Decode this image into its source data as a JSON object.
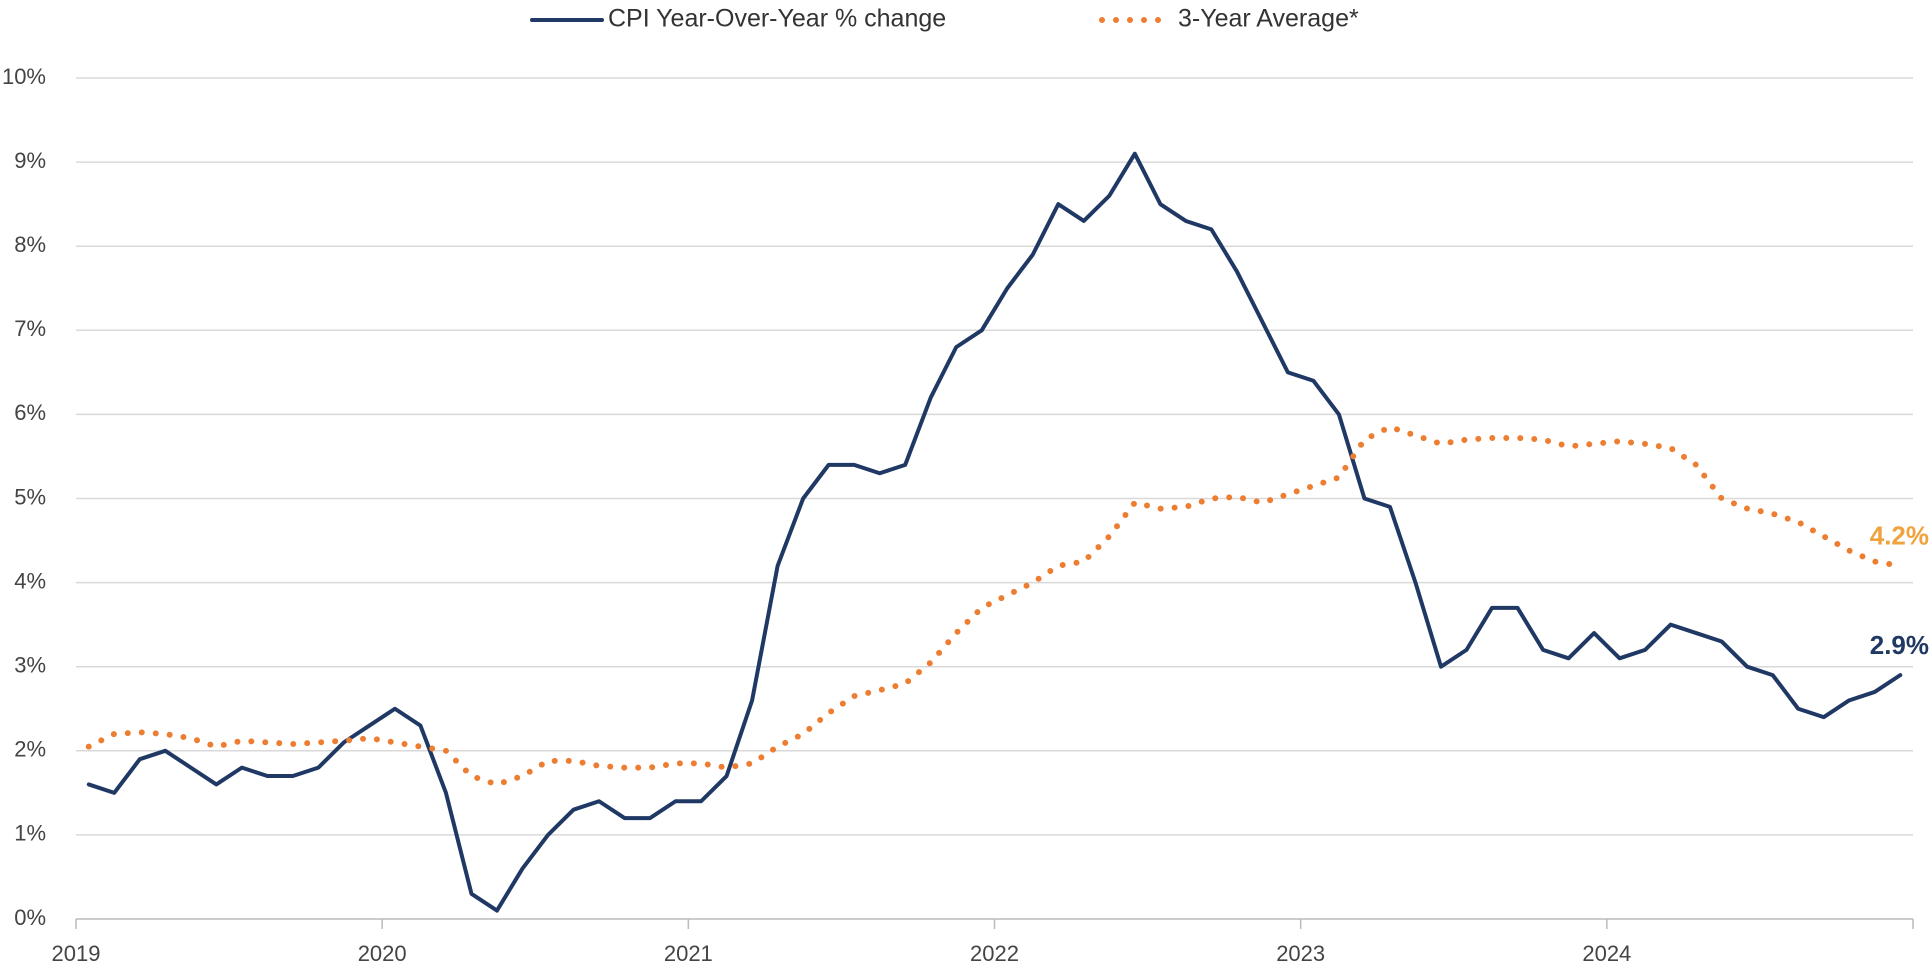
{
  "chart_data": {
    "type": "line",
    "x": [
      2019.0417,
      2019.125,
      2019.2083,
      2019.2917,
      2019.375,
      2019.4583,
      2019.5417,
      2019.625,
      2019.7083,
      2019.7917,
      2019.875,
      2019.9583,
      2020.0417,
      2020.125,
      2020.2083,
      2020.2917,
      2020.375,
      2020.4583,
      2020.5417,
      2020.625,
      2020.7083,
      2020.7917,
      2020.875,
      2020.9583,
      2021.0417,
      2021.125,
      2021.2083,
      2021.2917,
      2021.375,
      2021.4583,
      2021.5417,
      2021.625,
      2021.7083,
      2021.7917,
      2021.875,
      2021.9583,
      2022.0417,
      2022.125,
      2022.2083,
      2022.2917,
      2022.375,
      2022.4583,
      2022.5417,
      2022.625,
      2022.7083,
      2022.7917,
      2022.875,
      2022.9583,
      2023.0417,
      2023.125,
      2023.2083,
      2023.2917,
      2023.375,
      2023.4583,
      2023.5417,
      2023.625,
      2023.7083,
      2023.7917,
      2023.875,
      2023.9583,
      2024.0417,
      2024.125,
      2024.2083,
      2024.2917,
      2024.375,
      2024.4583,
      2024.5417,
      2024.625,
      2024.7083,
      2024.7917,
      2024.875,
      2024.9583
    ],
    "series": [
      {
        "name": "CPI Year-Over-Year % change",
        "color": "#203864",
        "style": "solid",
        "values": [
          1.6,
          1.5,
          1.9,
          2.0,
          1.8,
          1.6,
          1.8,
          1.7,
          1.7,
          1.8,
          2.1,
          2.3,
          2.5,
          2.3,
          1.5,
          0.3,
          0.1,
          0.6,
          1.0,
          1.3,
          1.4,
          1.2,
          1.2,
          1.4,
          1.4,
          1.7,
          2.6,
          4.2,
          5.0,
          5.4,
          5.4,
          5.3,
          5.4,
          6.2,
          6.8,
          7.0,
          7.5,
          7.9,
          8.5,
          8.3,
          8.6,
          9.1,
          8.5,
          8.3,
          8.2,
          7.7,
          7.1,
          6.5,
          6.4,
          6.0,
          5.0,
          4.9,
          4.0,
          3.0,
          3.2,
          3.7,
          3.7,
          3.2,
          3.1,
          3.4,
          3.1,
          3.2,
          3.5,
          3.4,
          3.3,
          3.0,
          2.9,
          2.5,
          2.4,
          2.6,
          2.7,
          2.9
        ],
        "value_labels": [
          null,
          null,
          null,
          null,
          null,
          null,
          null,
          null,
          null,
          null,
          null,
          null,
          null,
          null,
          null,
          null,
          null,
          null,
          null,
          null,
          null,
          null,
          null,
          null,
          null,
          null,
          null,
          null,
          null,
          null,
          null,
          null,
          null,
          null,
          null,
          null,
          null,
          null,
          null,
          null,
          null,
          null,
          null,
          null,
          null,
          null,
          null,
          null,
          null,
          null,
          null,
          null,
          null,
          null,
          null,
          null,
          null,
          null,
          null,
          null,
          null,
          null,
          null,
          null,
          null,
          null,
          null,
          null,
          null,
          null,
          null,
          "2.9%"
        ],
        "label_color": "#203864"
      },
      {
        "name": "3-Year Average*",
        "color": "#ed7d31",
        "style": "dotted",
        "values": [
          2.05,
          2.2,
          2.22,
          2.2,
          2.15,
          2.05,
          2.12,
          2.1,
          2.08,
          2.1,
          2.12,
          2.15,
          2.1,
          2.05,
          2.0,
          1.7,
          1.6,
          1.7,
          1.88,
          1.88,
          1.82,
          1.8,
          1.8,
          1.85,
          1.85,
          1.8,
          1.85,
          2.05,
          2.2,
          2.45,
          2.65,
          2.72,
          2.8,
          3.05,
          3.4,
          3.7,
          3.85,
          4.0,
          4.2,
          4.25,
          4.55,
          4.95,
          4.88,
          4.9,
          5.0,
          5.02,
          4.95,
          5.05,
          5.15,
          5.25,
          5.7,
          5.85,
          5.75,
          5.65,
          5.7,
          5.72,
          5.72,
          5.7,
          5.62,
          5.65,
          5.68,
          5.65,
          5.6,
          5.4,
          5.0,
          4.88,
          4.82,
          4.72,
          4.55,
          4.38,
          4.25,
          4.2
        ],
        "value_labels": [
          null,
          null,
          null,
          null,
          null,
          null,
          null,
          null,
          null,
          null,
          null,
          null,
          null,
          null,
          null,
          null,
          null,
          null,
          null,
          null,
          null,
          null,
          null,
          null,
          null,
          null,
          null,
          null,
          null,
          null,
          null,
          null,
          null,
          null,
          null,
          null,
          null,
          null,
          null,
          null,
          null,
          null,
          null,
          null,
          null,
          null,
          null,
          null,
          null,
          null,
          null,
          null,
          null,
          null,
          null,
          null,
          null,
          null,
          null,
          null,
          null,
          null,
          null,
          null,
          null,
          null,
          null,
          null,
          null,
          null,
          null,
          "4.2%"
        ],
        "label_color": "#f0a23c"
      }
    ],
    "xlim": [
      2019,
      2025
    ],
    "xticks": [
      2019,
      2020,
      2021,
      2022,
      2023,
      2024
    ],
    "ylim": [
      0,
      10
    ],
    "yticks": [
      {
        "value": 0,
        "label": "0%"
      },
      {
        "value": 1,
        "label": "1%"
      },
      {
        "value": 2,
        "label": "2%"
      },
      {
        "value": 3,
        "label": "3%"
      },
      {
        "value": 4,
        "label": "4%"
      },
      {
        "value": 5,
        "label": "5%"
      },
      {
        "value": 6,
        "label": "6%"
      },
      {
        "value": 7,
        "label": "7%"
      },
      {
        "value": 8,
        "label": "8%"
      },
      {
        "value": 9,
        "label": "9%"
      },
      {
        "value": 10,
        "label": "10%"
      }
    ],
    "grid": true,
    "legend": "top"
  }
}
